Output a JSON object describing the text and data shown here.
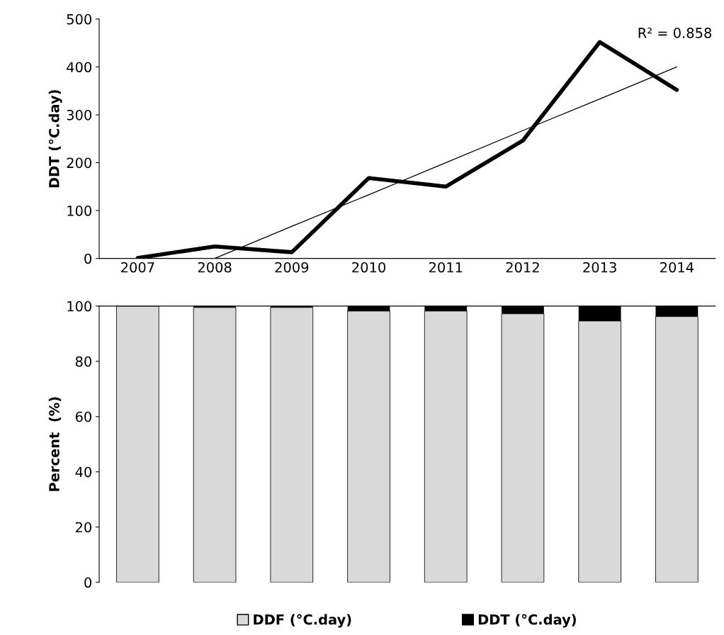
{
  "chart_data": [
    {
      "type": "line",
      "ylabel": "DDT (°C.day)",
      "categories": [
        "2007",
        "2008",
        "2009",
        "2010",
        "2011",
        "2012",
        "2013",
        "2014"
      ],
      "ylim": [
        0,
        500
      ],
      "yticks": [
        0,
        100,
        200,
        300,
        400,
        500
      ],
      "grid": false,
      "legend": false,
      "series": [
        {
          "type": "line",
          "color": "#000000",
          "values": [
            1,
            25,
            13,
            168,
            150,
            246,
            452,
            352
          ]
        },
        {
          "type": "line",
          "color": "#000000",
          "values": [
            null,
            0,
            67,
            133,
            200,
            267,
            333,
            400
          ]
        }
      ],
      "annotations": [
        "R² = 0.858"
      ]
    },
    {
      "type": "bar",
      "stacked": true,
      "ylabel": "Percent  (%)",
      "categories": [
        null,
        null,
        null,
        null,
        null,
        null,
        null,
        null
      ],
      "ylim": [
        0,
        100
      ],
      "yticks": [
        0,
        20,
        40,
        60,
        80,
        100
      ],
      "tick_labels": "y",
      "grid": false,
      "legend": "bottom",
      "series": [
        {
          "name": "DDF (°C.day)",
          "color": "#d9d9d9",
          "values": [
            100,
            99.5,
            99.5,
            98.2,
            98.2,
            97.2,
            94.6,
            96.2
          ]
        },
        {
          "name": "DDT (°C.day)",
          "color": "#000000",
          "values": [
            0,
            0.5,
            0.5,
            1.8,
            1.8,
            2.8,
            5.4,
            3.8
          ]
        }
      ]
    }
  ]
}
